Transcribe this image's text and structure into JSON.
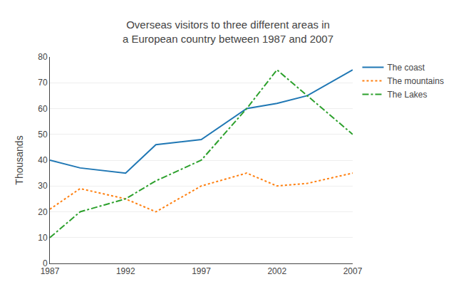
{
  "chart_data": {
    "type": "line",
    "title": "Overseas visitors to three different areas in\na European country between 1987 and 2007",
    "y_label": "Thousands",
    "x": [
      1987,
      1989,
      1992,
      1994,
      1997,
      2000,
      2002,
      2004,
      2007
    ],
    "series": [
      {
        "name": "The coast",
        "line_style": "solid",
        "values": [
          40,
          37,
          35,
          46,
          48,
          60,
          62,
          65,
          75
        ]
      },
      {
        "name": "The mountains",
        "line_style": "dotted",
        "values": [
          21,
          29,
          25,
          20,
          30,
          35,
          30,
          31,
          35
        ]
      },
      {
        "name": "The Lakes",
        "line_style": "dashdot",
        "values": [
          10,
          20,
          25,
          32,
          40,
          60,
          75,
          65,
          50
        ]
      }
    ],
    "xlim": [
      1987,
      2007
    ],
    "xticks": [
      1987,
      1992,
      1997,
      2002,
      2007
    ],
    "ylim": [
      0,
      80
    ],
    "yticks": [
      0,
      10,
      20,
      30,
      40,
      50,
      60,
      70,
      80
    ],
    "grid": "y",
    "legend": "right"
  }
}
